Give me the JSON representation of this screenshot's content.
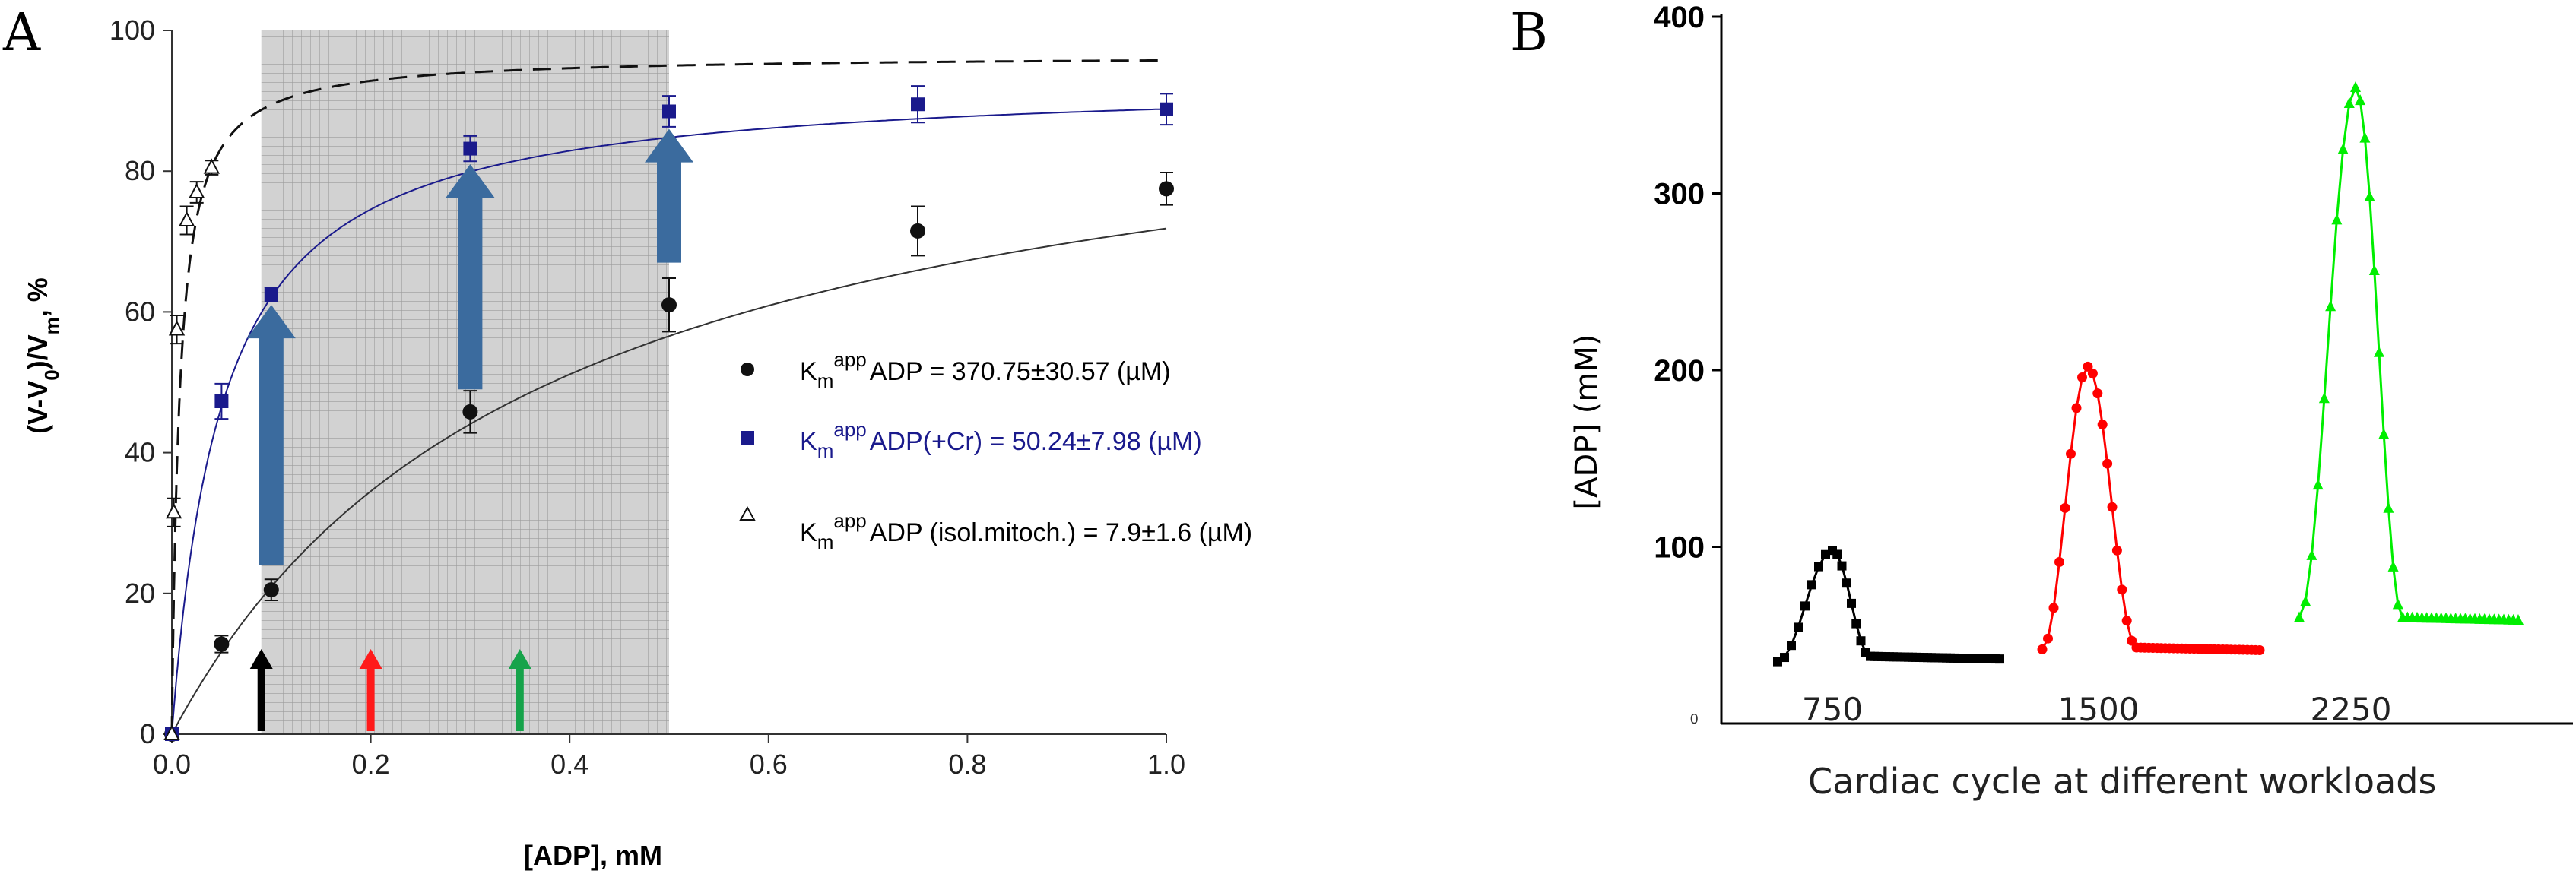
{
  "chart_data": [
    {
      "panel": "A",
      "type": "scatter",
      "xlabel": "[ADP], mM",
      "ylabel_main": "(V-V",
      "ylabel_sub1": "0",
      "ylabel_mid": ")/V",
      "ylabel_sub2": "m",
      "ylabel_tail": ", %",
      "xlim": [
        0,
        1.0
      ],
      "ylim": [
        0,
        100
      ],
      "xticks": [
        "0.0",
        "0.2",
        "0.4",
        "0.6",
        "0.8",
        "1.0"
      ],
      "yticks": [
        "0",
        "20",
        "40",
        "60",
        "80",
        "100"
      ],
      "shaded_region": [
        0.09,
        0.5
      ],
      "series": [
        {
          "name": "ADP",
          "color": "#111111",
          "marker": "circle",
          "legend_prefix": "K",
          "legend_sub": "m",
          "legend_sup": "app",
          "legend_text": "ADP = 370.75±30.57 (µM)",
          "km": 0.37075,
          "vmax": 98.5,
          "points": [
            {
              "x": 0,
              "y": 0,
              "err": 0
            },
            {
              "x": 0.05,
              "y": 12.8,
              "err": 1.2
            },
            {
              "x": 0.1,
              "y": 20.5,
              "err": 1.5
            },
            {
              "x": 0.3,
              "y": 45.8,
              "err": 3.0
            },
            {
              "x": 0.5,
              "y": 61.0,
              "err": 3.8
            },
            {
              "x": 0.75,
              "y": 71.5,
              "err": 3.5
            },
            {
              "x": 1.0,
              "y": 77.5,
              "err": 2.3
            }
          ]
        },
        {
          "name": "ADP(+Cr)",
          "color": "#1a1a8c",
          "marker": "square",
          "legend_prefix": "K",
          "legend_sub": "m",
          "legend_sup": "app",
          "legend_text": "ADP(+Cr) = 50.24±7.98 (µM)",
          "km": 0.05024,
          "vmax": 93.3,
          "points": [
            {
              "x": 0,
              "y": 0,
              "err": 0
            },
            {
              "x": 0.05,
              "y": 47.3,
              "err": 2.5
            },
            {
              "x": 0.1,
              "y": 62.5,
              "err": 1.0
            },
            {
              "x": 0.3,
              "y": 83.2,
              "err": 1.8
            },
            {
              "x": 0.5,
              "y": 88.5,
              "err": 2.2
            },
            {
              "x": 0.75,
              "y": 89.5,
              "err": 2.6
            },
            {
              "x": 1.0,
              "y": 88.8,
              "err": 2.2
            }
          ]
        },
        {
          "name": "ADP (isol.mitoch.)",
          "color": "#111111",
          "marker": "triangle-open",
          "legend_prefix": "K",
          "legend_sub": "m",
          "legend_sup": "app",
          "legend_text": "ADP (isol.mitoch.) = 7.9±1.6 (µM)",
          "km": 0.0079,
          "vmax": 96.5,
          "points": [
            {
              "x": 0,
              "y": 0,
              "err": 0
            },
            {
              "x": 0.002,
              "y": 31.5,
              "err": 2.0
            },
            {
              "x": 0.005,
              "y": 57.5,
              "err": 2.0
            },
            {
              "x": 0.015,
              "y": 73.0,
              "err": 2.0
            },
            {
              "x": 0.025,
              "y": 77.0,
              "err": 1.5
            },
            {
              "x": 0.04,
              "y": 80.5,
              "err": 1.0
            }
          ]
        }
      ],
      "blue_arrows": [
        {
          "x": 0.1,
          "from": 24,
          "to": 61
        },
        {
          "x": 0.3,
          "from": 49,
          "to": 81
        },
        {
          "x": 0.5,
          "from": 67,
          "to": 86
        }
      ],
      "workload_arrows": [
        {
          "x": 0.09,
          "color": "#000000"
        },
        {
          "x": 0.2,
          "color": "#ff1a1a"
        },
        {
          "x": 0.35,
          "color": "#16a34a"
        }
      ]
    },
    {
      "panel": "B",
      "type": "line",
      "ylabel": "[ADP] (mM)",
      "xlabel": "Cardiac cycle at different workloads",
      "ylim": [
        0,
        400
      ],
      "yticks": [
        "400",
        "300",
        "200",
        "100"
      ],
      "origin_label": "0",
      "series": [
        {
          "name": "750",
          "color": "#000000",
          "marker": "square",
          "baseline": 38,
          "start": 35,
          "peak": 98,
          "rise_points": 8,
          "fall_points": 8,
          "tail_points": 34
        },
        {
          "name": "1500",
          "color": "#ff0000",
          "marker": "circle",
          "baseline": 43,
          "start": 42,
          "peak": 202,
          "rise_points": 8,
          "fall_points": 10,
          "tail_points": 30
        },
        {
          "name": "2250",
          "color": "#00ee00",
          "marker": "triangle",
          "baseline": 60,
          "start": 60,
          "peak": 360,
          "rise_points": 9,
          "fall_points": 10,
          "tail_points": 24
        }
      ]
    }
  ],
  "panel_labels": {
    "a": "A",
    "b": "B"
  }
}
